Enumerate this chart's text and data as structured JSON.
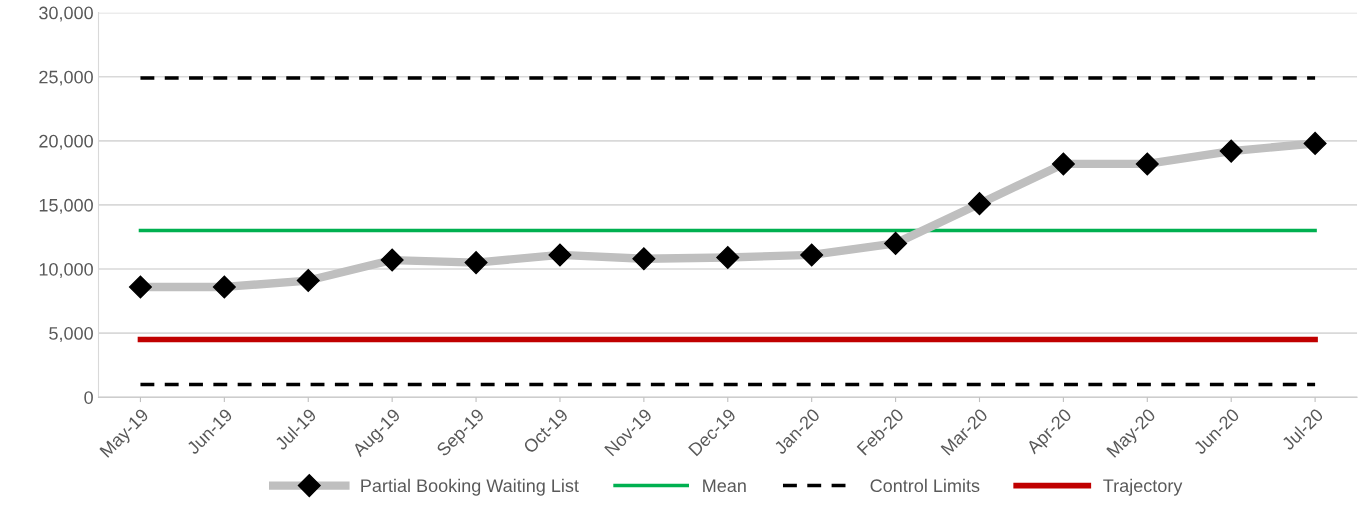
{
  "chart_data": {
    "type": "line",
    "categories": [
      "May-19",
      "Jun-19",
      "Jul-19",
      "Aug-19",
      "Sep-19",
      "Oct-19",
      "Nov-19",
      "Dec-19",
      "Jan-20",
      "Feb-20",
      "Mar-20",
      "Apr-20",
      "May-20",
      "Jun-20",
      "Jul-20"
    ],
    "series": [
      {
        "name": "Partial Booking Waiting List",
        "color": "#bfbfbf",
        "marker": "diamond",
        "line_style": "solid",
        "values": [
          8600,
          8600,
          9100,
          10700,
          10500,
          11100,
          10800,
          10900,
          11100,
          12000,
          15100,
          18200,
          18200,
          19200,
          19800
        ]
      },
      {
        "name": "Mean",
        "color": "#00b050",
        "marker": "none",
        "line_style": "solid",
        "values": [
          13000,
          13000,
          13000,
          13000,
          13000,
          13000,
          13000,
          13000,
          13000,
          13000,
          13000,
          13000,
          13000,
          13000,
          13000
        ]
      },
      {
        "name": "Control Limits",
        "color": "#000000",
        "marker": "none",
        "line_style": "dashed",
        "values": [
          24900,
          24900,
          24900,
          24900,
          24900,
          24900,
          24900,
          24900,
          24900,
          24900,
          24900,
          24900,
          24900,
          24900,
          24900
        ]
      },
      {
        "color": "#000000",
        "marker": "none",
        "line_style": "dashed",
        "values": [
          1000,
          1000,
          1000,
          1000,
          1000,
          1000,
          1000,
          1000,
          1000,
          1000,
          1000,
          1000,
          1000,
          1000,
          1000
        ]
      },
      {
        "name": "Trajectory",
        "color": "#c00000",
        "marker": "none",
        "line_style": "solid",
        "values": [
          4500,
          4500,
          4500,
          4500,
          4500,
          4500,
          4500,
          4500,
          4500,
          4500,
          4500,
          4500,
          4500,
          4500,
          4500
        ]
      }
    ],
    "ylim": [
      0,
      30000
    ],
    "yticks": [
      {
        "value": 0,
        "label": "0"
      },
      {
        "value": 5000,
        "label": "5,000"
      },
      {
        "value": 10000,
        "label": "10,000"
      },
      {
        "value": 15000,
        "label": "15,000"
      },
      {
        "value": 20000,
        "label": "20,000"
      },
      {
        "value": 25000,
        "label": "25,000"
      },
      {
        "value": 30000,
        "label": "30,000"
      }
    ],
    "grid": "y",
    "legend": "bottom"
  }
}
